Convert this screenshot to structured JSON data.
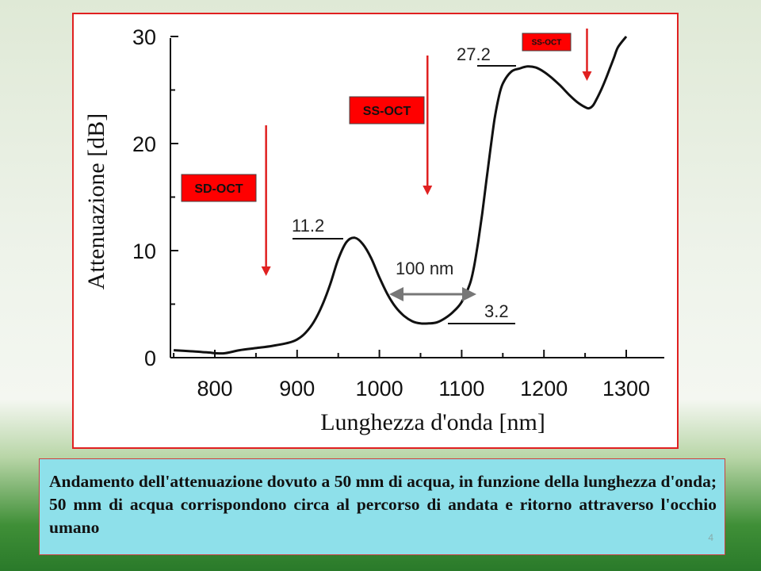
{
  "slide": {
    "caption": "Andamento dell'attenuazione dovuto a 50 mm di acqua, in funzione della lunghezza d'onda; 50 mm di acqua corrispondono circa al percorso di andata e ritorno attraverso l'occhio umano",
    "page_number": "4"
  },
  "chart_data": {
    "type": "line",
    "xlabel": "Lunghezza d'onda [nm]",
    "ylabel": "Attenuazione [dB]",
    "xlim": [
      750,
      1300
    ],
    "ylim": [
      0,
      30
    ],
    "x_ticks": [
      "800",
      "900",
      "1000",
      "1100",
      "1200",
      "1300"
    ],
    "y_ticks": [
      "0",
      "10",
      "20",
      "30"
    ],
    "series": [
      {
        "x": [
          750,
          770,
          790,
          810,
          830,
          850,
          870,
          890,
          900,
          910,
          920,
          930,
          940,
          950,
          960,
          970,
          980,
          990,
          1000,
          1010,
          1020,
          1030,
          1040,
          1050,
          1060,
          1070,
          1080,
          1090,
          1100,
          1110,
          1115,
          1120,
          1125,
          1130,
          1135,
          1140,
          1145,
          1150,
          1160,
          1170,
          1180,
          1190,
          1200,
          1210,
          1220,
          1230,
          1240,
          1250,
          1255,
          1260,
          1265,
          1270,
          1275,
          1280,
          1285,
          1290,
          1300
        ],
        "y": [
          0.7,
          0.6,
          0.5,
          0.4,
          0.7,
          0.9,
          1.1,
          1.4,
          1.7,
          2.3,
          3.3,
          4.8,
          6.8,
          9.2,
          10.8,
          11.2,
          10.6,
          9.3,
          7.5,
          5.9,
          4.7,
          3.9,
          3.4,
          3.2,
          3.2,
          3.3,
          3.7,
          4.3,
          5.2,
          6.9,
          8.5,
          10.8,
          13.5,
          16.5,
          19.5,
          22.3,
          24.3,
          25.6,
          26.7,
          27.0,
          27.2,
          27.1,
          26.7,
          26.1,
          25.4,
          24.6,
          23.9,
          23.4,
          23.3,
          23.6,
          24.3,
          25.1,
          26.0,
          27.0,
          28.0,
          29.0,
          30.0
        ]
      }
    ],
    "annotations": {
      "peak_label": "11.2",
      "valley_label": "3.2",
      "plateau_label": "27.2",
      "width_label": "100 nm"
    },
    "markers": [
      {
        "label": "SD-OCT",
        "x": 870
      },
      {
        "label": "SS-OCT",
        "x": 1070
      },
      {
        "label": "SS-OCT",
        "x": 1260
      }
    ],
    "marker_color": "#ff0000",
    "line_color": "#e02020",
    "curve_color": "#111111",
    "arrow_color": "#777777"
  }
}
